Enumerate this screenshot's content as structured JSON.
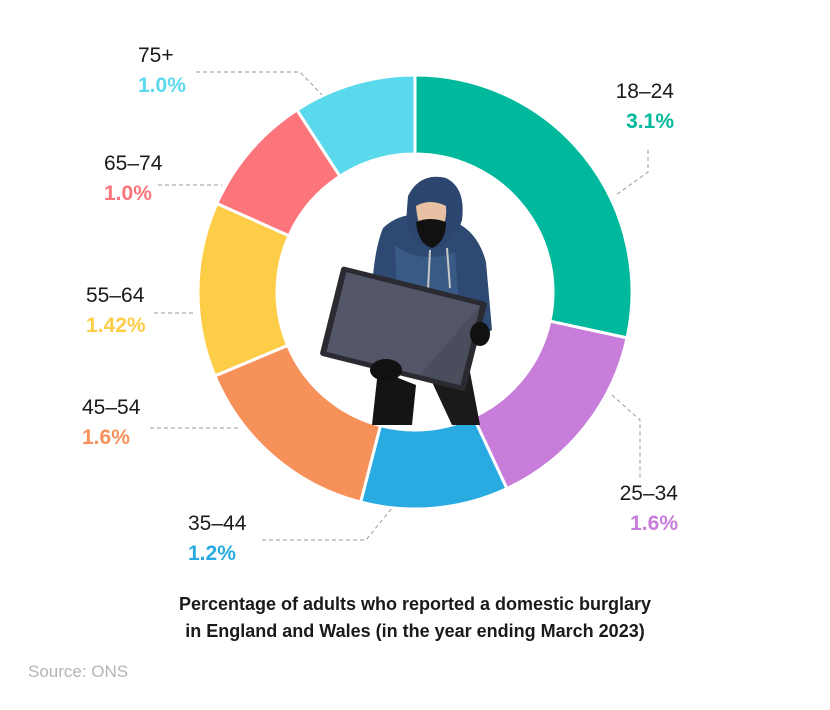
{
  "chart_data": {
    "type": "pie",
    "variant": "donut",
    "title": "Percentage of adults who reported a domestic burglary in England and Wales (in the year ending March 2023)",
    "title_lines": [
      "Percentage of adults who reported a domestic burglary",
      "in England and Wales (in the year ending March 2023)"
    ],
    "categories": [
      "18–24",
      "25–34",
      "35–44",
      "45–54",
      "55–64",
      "65–74",
      "75+"
    ],
    "values": [
      3.1,
      1.6,
      1.2,
      1.6,
      1.42,
      1.0,
      1.0
    ],
    "value_labels": [
      "3.1%",
      "1.6%",
      "1.2%",
      "1.6%",
      "1.42%",
      "1.0%",
      "1.0%"
    ],
    "colors": [
      "#00b89c",
      "#c77dd9",
      "#29abe2",
      "#f7915a",
      "#fdcd48",
      "#fc757a",
      "#5ad8ec"
    ],
    "center_image": "burglar carrying a television"
  },
  "source": "Source: ONS"
}
